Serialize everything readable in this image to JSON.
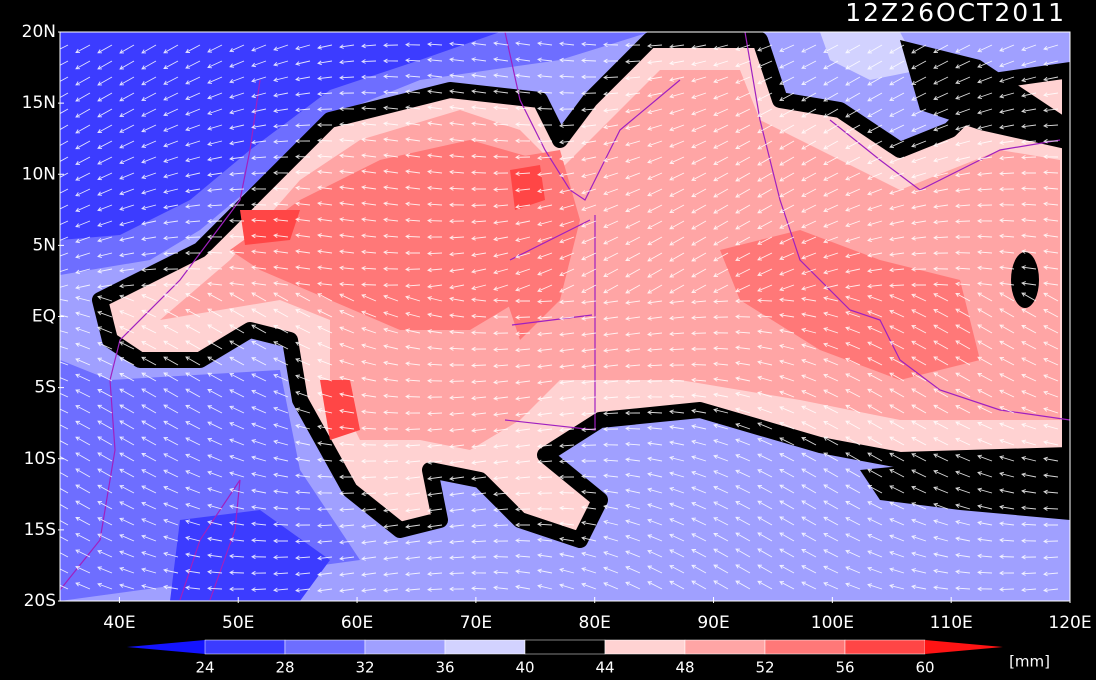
{
  "chart_data": {
    "type": "map",
    "title": "12Z26OCT2011",
    "xlim": [
      35,
      120
    ],
    "ylim": [
      -20,
      20
    ],
    "xticks": [
      {
        "value": 40,
        "label": "40E"
      },
      {
        "value": 50,
        "label": "50E"
      },
      {
        "value": 60,
        "label": "60E"
      },
      {
        "value": 70,
        "label": "70E"
      },
      {
        "value": 80,
        "label": "80E"
      },
      {
        "value": 90,
        "label": "90E"
      },
      {
        "value": 100,
        "label": "100E"
      },
      {
        "value": 110,
        "label": "110E"
      },
      {
        "value": 120,
        "label": "120E"
      }
    ],
    "yticks": [
      {
        "value": 20,
        "label": "20N"
      },
      {
        "value": 15,
        "label": "15N"
      },
      {
        "value": 10,
        "label": "10N"
      },
      {
        "value": 5,
        "label": "5N"
      },
      {
        "value": 0,
        "label": "EQ"
      },
      {
        "value": -5,
        "label": "5S"
      },
      {
        "value": -10,
        "label": "10S"
      },
      {
        "value": -15,
        "label": "15S"
      },
      {
        "value": -20,
        "label": "20S"
      }
    ],
    "colorbar": {
      "levels": [
        24,
        28,
        32,
        36,
        40,
        44,
        48,
        52,
        56,
        60
      ],
      "colors": [
        "#1414ff",
        "#3c3cff",
        "#6e6eff",
        "#a0a0ff",
        "#d2d2ff",
        "#000000",
        "#ffd2d2",
        "#ffa5a5",
        "#ff7878",
        "#ff4646",
        "#ff1414"
      ],
      "unit": "[mm]"
    }
  }
}
